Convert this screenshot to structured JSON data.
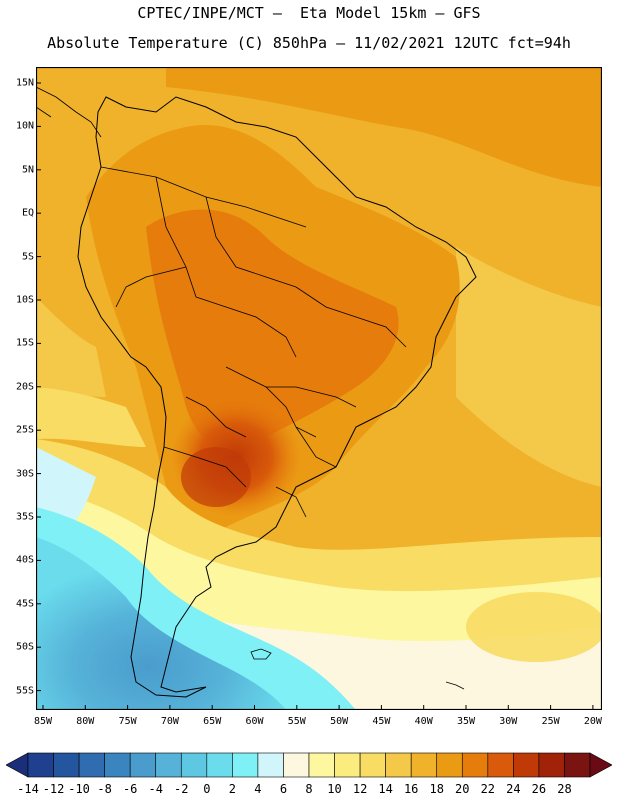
{
  "header": {
    "title_line1": "CPTEC/INPE/MCT –  Eta Model 15km – GFS",
    "title_line2": "Absolute Temperature (C) 850hPa – 11/02/2021 12UTC fct=94h"
  },
  "map": {
    "lat_labels": [
      "15N",
      "10N",
      "5N",
      "EQ",
      "5S",
      "10S",
      "15S",
      "20S",
      "25S",
      "30S",
      "35S",
      "40S",
      "45S",
      "50S",
      "55S"
    ],
    "lon_labels": [
      "85W",
      "80W",
      "75W",
      "70W",
      "65W",
      "60W",
      "55W",
      "50W",
      "45W",
      "40W",
      "35W",
      "30W",
      "25W",
      "20W"
    ]
  },
  "colorbar": {
    "labels": [
      "-14",
      "-12",
      "-10",
      "-8",
      "-6",
      "-4",
      "-2",
      "0",
      "2",
      "4",
      "6",
      "8",
      "10",
      "12",
      "14",
      "16",
      "18",
      "20",
      "22",
      "24",
      "26",
      "28"
    ],
    "colors": [
      "#1f3f8f",
      "#2456a0",
      "#2f6db0",
      "#3a84c0",
      "#4a9ccc",
      "#56b2d8",
      "#5ec8e2",
      "#6adcec",
      "#7ef0f6",
      "#d0f6fb",
      "#fdf7e0",
      "#fdf7a0",
      "#fbec80",
      "#f8dc64",
      "#f4c848",
      "#f0b22a",
      "#eb9a14",
      "#e67c0c",
      "#d85a0a",
      "#c03a08",
      "#a02208",
      "#7a1410"
    ],
    "low_color": "#1a2e7a",
    "high_color": "#6a0a14"
  }
}
